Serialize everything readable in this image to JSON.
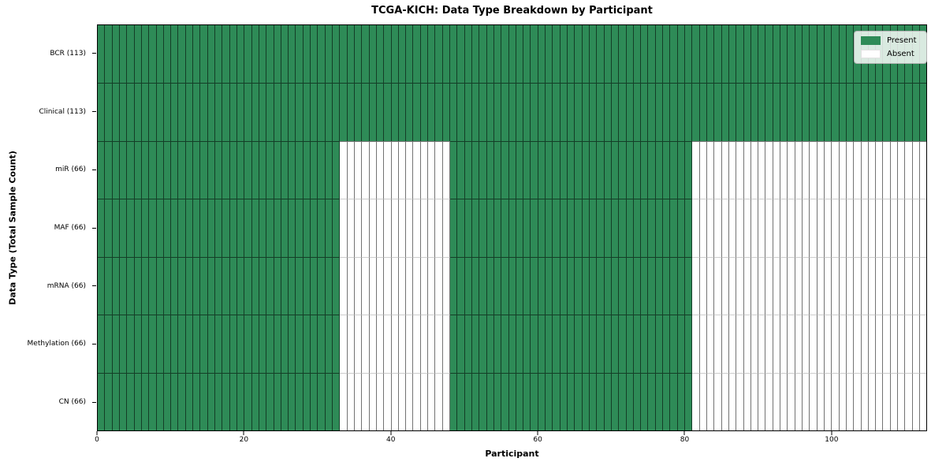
{
  "chart_data": {
    "type": "heatmap",
    "title": "TCGA-KICH: Data Type Breakdown by Participant",
    "xlabel": "Participant",
    "ylabel": "Data Type (Total Sample Count)",
    "x_ticks": [
      0,
      20,
      40,
      60,
      80,
      100
    ],
    "x_range": [
      0,
      113
    ],
    "n_participants": 113,
    "categories": [
      "BCR (113)",
      "Clinical (113)",
      "miR (66)",
      "MAF (66)",
      "mRNA (66)",
      "Methylation (66)",
      "CN (66)"
    ],
    "rows": [
      {
        "label": "BCR (113)",
        "present_count": 113,
        "present_ranges": [
          [
            0,
            113
          ]
        ]
      },
      {
        "label": "Clinical (113)",
        "present_count": 113,
        "present_ranges": [
          [
            0,
            113
          ]
        ]
      },
      {
        "label": "miR (66)",
        "present_count": 66,
        "present_ranges": [
          [
            0,
            33
          ],
          [
            48,
            81
          ]
        ]
      },
      {
        "label": "MAF (66)",
        "present_count": 66,
        "present_ranges": [
          [
            0,
            33
          ],
          [
            48,
            81
          ]
        ]
      },
      {
        "label": "mRNA (66)",
        "present_count": 66,
        "present_ranges": [
          [
            0,
            33
          ],
          [
            48,
            81
          ]
        ]
      },
      {
        "label": "Methylation (66)",
        "present_count": 66,
        "present_ranges": [
          [
            0,
            33
          ],
          [
            48,
            81
          ]
        ]
      },
      {
        "label": "CN (66)",
        "present_count": 66,
        "present_ranges": [
          [
            0,
            33
          ],
          [
            48,
            81
          ]
        ]
      }
    ],
    "legend": {
      "position": "upper right",
      "entries": [
        {
          "label": "Present",
          "color": "#2e8b57"
        },
        {
          "label": "Absent",
          "color": "#ffffff"
        }
      ]
    },
    "colors": {
      "present": "#2e8b57",
      "absent": "#ffffff",
      "cell_edge_dark": "rgba(0,0,0,0.55)",
      "row_line_light": "#cccccc",
      "spine": "#000000"
    }
  }
}
